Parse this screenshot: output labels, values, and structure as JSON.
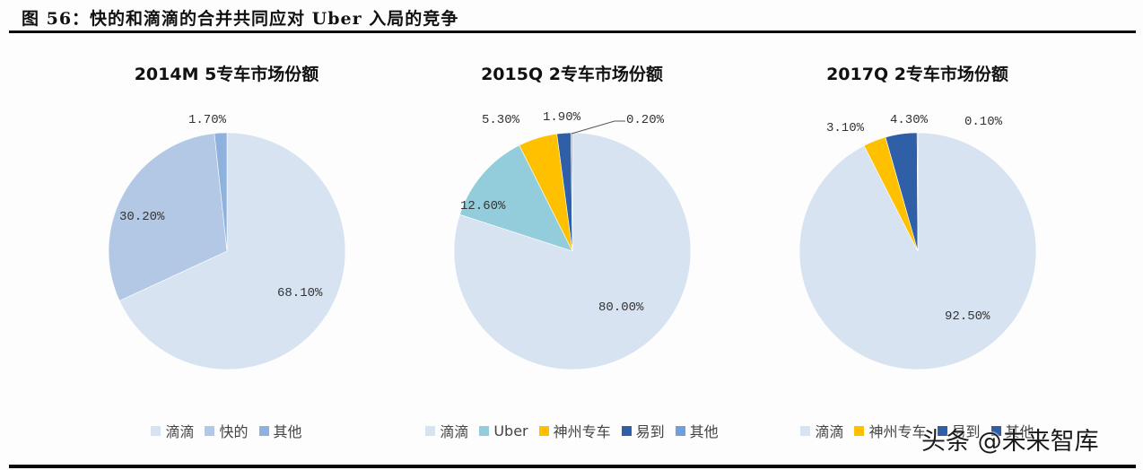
{
  "figure": {
    "title": "图 56：快的和滴滴的合并共同应对 Uber 入局的竞争",
    "watermark": "头条 @未来智库"
  },
  "chart_data": [
    {
      "type": "pie",
      "title": "2014M 5专车市场份额",
      "categories": [
        "滴滴",
        "快的",
        "其他"
      ],
      "values": [
        68.1,
        30.2,
        1.7
      ],
      "labels": [
        "68.10%",
        "30.20%",
        "1.70%"
      ],
      "colors": [
        "#D8E3F1",
        "#B3C8E4",
        "#8FB1DE"
      ],
      "start_angle": "12 o'clock, clockwise",
      "legend_position": "bottom"
    },
    {
      "type": "pie",
      "title": "2015Q 2专车市场份额",
      "categories": [
        "滴滴",
        "Uber",
        "神州专车",
        "易到",
        "其他"
      ],
      "values": [
        80.0,
        12.6,
        5.3,
        1.9,
        0.2
      ],
      "labels": [
        "80.00%",
        "12.60%",
        "5.30%",
        "1.90%",
        "0.20%"
      ],
      "colors": [
        "#D8E3F1",
        "#93CDDC",
        "#FFC000",
        "#2F5FA6",
        "#6FA0DC"
      ],
      "start_angle": "12 o'clock, clockwise",
      "legend_position": "bottom"
    },
    {
      "type": "pie",
      "title": "2017Q 2专车市场份额",
      "categories": [
        "滴滴",
        "神州专车",
        "易到",
        "其他"
      ],
      "values": [
        92.5,
        3.1,
        4.3,
        0.1
      ],
      "labels": [
        "92.50%",
        "3.10%",
        "4.30%",
        "0.10%"
      ],
      "colors": [
        "#D8E3F1",
        "#FFC000",
        "#2F5FA6",
        "#2F5FA6"
      ],
      "legend_labels": [
        "滴滴",
        "神州专车",
        "易到",
        "其他"
      ],
      "start_angle": "12 o'clock, clockwise",
      "legend_position": "bottom"
    }
  ]
}
